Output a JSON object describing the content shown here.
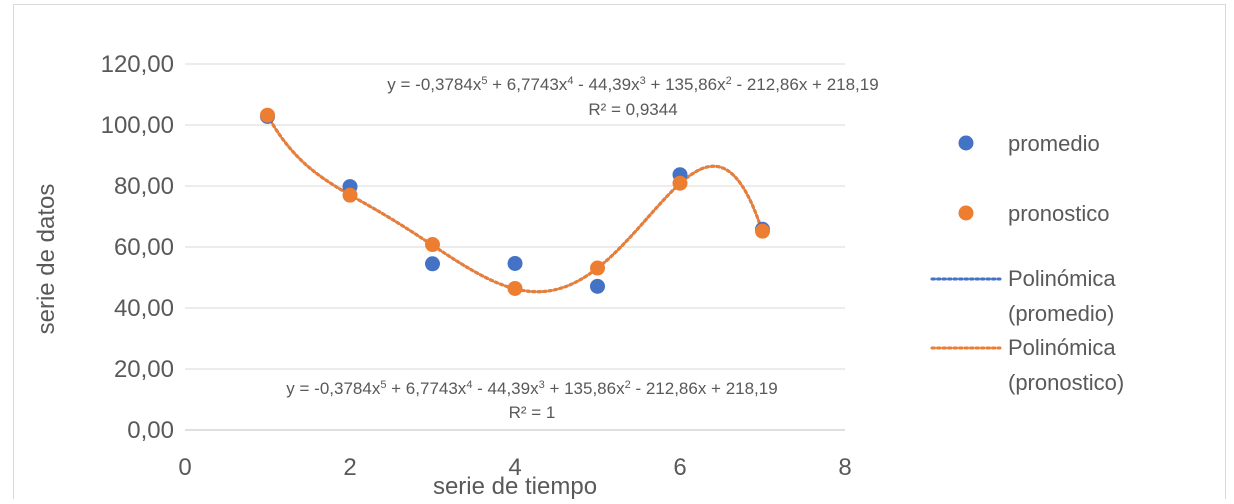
{
  "chart_data": {
    "type": "scatter",
    "xlabel": "serie de tiempo",
    "ylabel": "serie de datos",
    "xlim": [
      0,
      8
    ],
    "ylim": [
      0,
      120
    ],
    "x_ticks": [
      "0",
      "2",
      "4",
      "6",
      "8"
    ],
    "y_ticks": [
      "0,00",
      "20,00",
      "40,00",
      "60,00",
      "80,00",
      "100,00",
      "120,00"
    ],
    "grid": true,
    "legend_position": "right",
    "series": [
      {
        "name": "promedio",
        "color": "#4472C4",
        "x": [
          1,
          2,
          3,
          4,
          5,
          6,
          7
        ],
        "y": [
          102.8,
          79.8,
          54.5,
          54.6,
          47.1,
          83.7,
          65.8
        ]
      },
      {
        "name": "pronostico",
        "color": "#ED7D31",
        "x": [
          1,
          2,
          3,
          4,
          5,
          6,
          7
        ],
        "y": [
          103.2,
          77.0,
          60.8,
          46.4,
          53.1,
          80.9,
          65.2
        ]
      }
    ],
    "trendlines": [
      {
        "name": "Polinómica (promedio)",
        "legend_lines": [
          "Polinómica",
          "(promedio)"
        ],
        "color": "#4472C4",
        "coefficients": [
          218.19,
          -212.86,
          135.86,
          -44.39,
          6.7743,
          -0.3784
        ],
        "equation_parts": [
          "y = -0,3784x",
          "5",
          " + 6,7743x",
          "4",
          " - 44,39x",
          "3",
          " + 135,86x",
          "2",
          " - 212,86x + 218,19"
        ],
        "r2_label": "R² = 0,9344"
      },
      {
        "name": "Polinómica (pronostico)",
        "legend_lines": [
          "Polinómica",
          "(pronostico)"
        ],
        "color": "#ED7D31",
        "coefficients": [
          218.19,
          -212.86,
          135.86,
          -44.39,
          6.7743,
          -0.3784
        ],
        "equation_parts": [
          "y = -0,3784x",
          "5",
          " + 6,7743x",
          "4",
          " - 44,39x",
          "3",
          " + 135,86x",
          "2",
          " - 212,86x + 218,19"
        ],
        "r2_label": "R² = 1"
      }
    ]
  }
}
